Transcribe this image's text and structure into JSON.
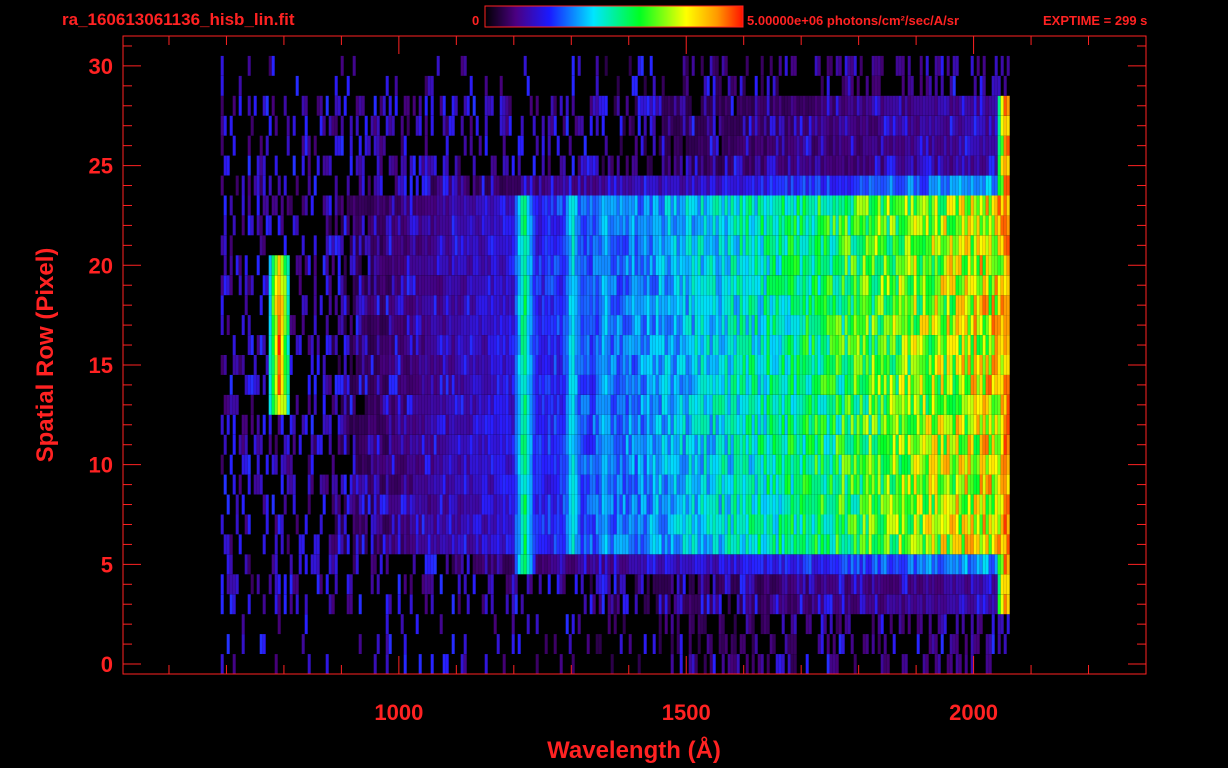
{
  "header": {
    "filename": "ra_160613061136_hisb_lin.fit",
    "colorbar_min": "0",
    "colorbar_max_label": "5.00000e+06 photons/cm²/sec/A/sr",
    "exptime": "EXPTIME = 299 s"
  },
  "colors": {
    "accent": "#ff2222",
    "background": "#000000"
  },
  "chart_data": {
    "type": "heatmap",
    "title": "ra_160613061136_hisb_lin.fit",
    "xlabel": "Wavelength (Å)",
    "ylabel": "Spatial Row (Pixel)",
    "xlim": [
      520,
      2300
    ],
    "ylim": [
      -0.5,
      31.5
    ],
    "x_ticks": [
      1000,
      1500,
      2000
    ],
    "y_ticks": [
      0,
      5,
      10,
      15,
      20,
      25,
      30
    ],
    "x_tick_labels": [
      "1000",
      "1500",
      "2000"
    ],
    "y_tick_labels": [
      "0",
      "5",
      "10",
      "15",
      "20",
      "25",
      "30"
    ],
    "colorscale": "rainbow",
    "color_range": [
      0,
      5000000
    ],
    "color_units": "photons/cm²/sec/A/sr",
    "data_extent": {
      "x_min": 690,
      "x_max": 2060,
      "row_min": 0,
      "row_max": 30
    },
    "features": [
      {
        "wavelength": 790,
        "rows": [
          13,
          20
        ],
        "level": 0.95
      },
      {
        "wavelength": 1216,
        "rows": [
          5,
          23
        ],
        "level": 0.55
      },
      {
        "wavelength": 1300,
        "rows": [
          6,
          23
        ],
        "level": 0.45
      },
      {
        "wavelength": 1356,
        "rows": [
          6,
          23
        ],
        "level": 0.4
      },
      {
        "wavelength": 2055,
        "rows": [
          3,
          28
        ],
        "level": 0.98
      }
    ]
  }
}
